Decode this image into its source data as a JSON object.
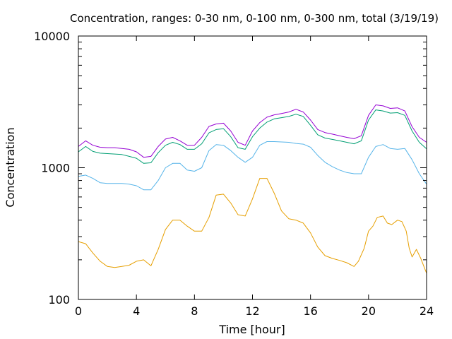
{
  "chart_data": {
    "type": "line",
    "title": "Concentration, ranges: 0-30 nm, 0-100 nm, 0-300 nm, total (3/19/19)",
    "xlabel": "Time [hour]",
    "ylabel": "Concentration",
    "xlim": [
      0,
      24
    ],
    "ylim": [
      100,
      10000
    ],
    "y_scale": "log",
    "x_ticks": [
      0,
      4,
      8,
      12,
      16,
      20,
      24
    ],
    "x_tick_labels": [
      "0",
      "4",
      "8",
      "12",
      "16",
      "20",
      "24"
    ],
    "y_ticks": [
      100,
      1000,
      10000
    ],
    "y_tick_labels": [
      "100",
      "1000",
      "10000"
    ],
    "grid": false,
    "legend": "none",
    "series": [
      {
        "color": "#e69f00",
        "x": [
          0,
          0.5,
          1,
          1.5,
          2,
          2.5,
          3,
          3.5,
          4,
          4.5,
          5,
          5.5,
          6,
          6.5,
          7,
          7.5,
          8,
          8.5,
          9,
          9.5,
          10,
          10.5,
          11,
          11.5,
          12,
          12.5,
          13,
          13.5,
          14,
          14.5,
          15,
          15.5,
          16,
          16.5,
          17,
          17.5,
          18,
          18.5,
          19,
          19.3,
          19.7,
          20,
          20.3,
          20.6,
          21,
          21.3,
          21.6,
          22,
          22.3,
          22.6,
          22.8,
          23,
          23.3,
          23.6,
          24
        ],
        "y": [
          275,
          265,
          225,
          195,
          178,
          175,
          178,
          182,
          195,
          200,
          180,
          240,
          340,
          400,
          400,
          360,
          330,
          330,
          420,
          620,
          630,
          540,
          440,
          430,
          580,
          830,
          830,
          640,
          470,
          410,
          400,
          380,
          320,
          250,
          215,
          205,
          198,
          190,
          178,
          195,
          245,
          330,
          360,
          420,
          430,
          380,
          370,
          400,
          390,
          330,
          245,
          210,
          240,
          205,
          158
        ]
      },
      {
        "color": "#56b4e9",
        "x": [
          0,
          0.5,
          1,
          1.5,
          2,
          2.5,
          3,
          3.5,
          4,
          4.5,
          5,
          5.5,
          6,
          6.5,
          7,
          7.5,
          8,
          8.5,
          9,
          9.5,
          10,
          10.5,
          11,
          11.5,
          12,
          12.5,
          13,
          13.5,
          14,
          14.5,
          15,
          15.5,
          16,
          16.5,
          17,
          17.5,
          18,
          18.5,
          19,
          19.5,
          20,
          20.5,
          21,
          21.5,
          22,
          22.5,
          23,
          23.5,
          24
        ],
        "y": [
          860,
          880,
          830,
          770,
          760,
          760,
          760,
          750,
          730,
          680,
          680,
          800,
          1000,
          1080,
          1080,
          960,
          940,
          1000,
          1350,
          1500,
          1480,
          1350,
          1200,
          1100,
          1200,
          1480,
          1580,
          1580,
          1570,
          1560,
          1530,
          1510,
          1430,
          1240,
          1100,
          1020,
          960,
          920,
          900,
          900,
          1200,
          1450,
          1500,
          1400,
          1380,
          1400,
          1150,
          900,
          750
        ]
      },
      {
        "color": "#009e73",
        "x": [
          0,
          0.5,
          1,
          1.5,
          2,
          2.5,
          3,
          3.5,
          4,
          4.5,
          5,
          5.5,
          6,
          6.5,
          7,
          7.5,
          8,
          8.5,
          9,
          9.5,
          10,
          10.5,
          11,
          11.5,
          12,
          12.5,
          13,
          13.5,
          14,
          14.5,
          15,
          15.5,
          16,
          16.5,
          17,
          17.5,
          18,
          18.5,
          19,
          19.5,
          20,
          20.5,
          21,
          21.5,
          22,
          22.5,
          23,
          23.5,
          24
        ],
        "y": [
          1320,
          1450,
          1330,
          1290,
          1280,
          1270,
          1260,
          1220,
          1180,
          1080,
          1090,
          1300,
          1480,
          1560,
          1500,
          1380,
          1380,
          1520,
          1840,
          1950,
          1980,
          1720,
          1420,
          1380,
          1720,
          2000,
          2220,
          2350,
          2400,
          2450,
          2550,
          2450,
          2100,
          1780,
          1680,
          1640,
          1600,
          1560,
          1520,
          1600,
          2300,
          2750,
          2700,
          2600,
          2620,
          2500,
          1900,
          1560,
          1390
        ]
      },
      {
        "color": "#9400d3",
        "x": [
          0,
          0.5,
          1,
          1.5,
          2,
          2.5,
          3,
          3.5,
          4,
          4.5,
          5,
          5.5,
          6,
          6.5,
          7,
          7.5,
          8,
          8.5,
          9,
          9.5,
          10,
          10.5,
          11,
          11.5,
          12,
          12.5,
          13,
          13.5,
          14,
          14.5,
          15,
          15.5,
          16,
          16.5,
          17,
          17.5,
          18,
          18.5,
          19,
          19.5,
          20,
          20.5,
          21,
          21.5,
          22,
          22.5,
          23,
          23.5,
          24
        ],
        "y": [
          1450,
          1600,
          1480,
          1430,
          1420,
          1420,
          1400,
          1380,
          1320,
          1200,
          1220,
          1450,
          1650,
          1700,
          1600,
          1480,
          1480,
          1700,
          2060,
          2150,
          2180,
          1900,
          1560,
          1480,
          1900,
          2200,
          2420,
          2520,
          2580,
          2650,
          2780,
          2650,
          2300,
          1950,
          1850,
          1800,
          1750,
          1700,
          1660,
          1750,
          2500,
          3000,
          2950,
          2820,
          2850,
          2700,
          2050,
          1700,
          1560
        ]
      }
    ]
  }
}
